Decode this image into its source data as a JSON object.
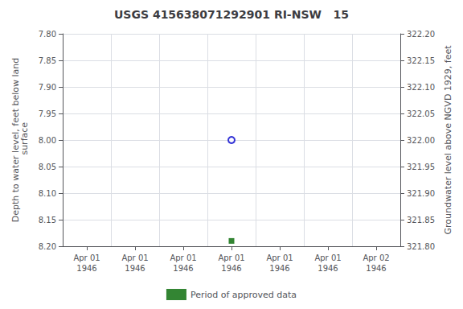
{
  "chart_data": {
    "type": "scatter",
    "title": "USGS 415638071292901 RI-NSW   15",
    "y_label": "Depth to water level, feet below land\n surface",
    "y2_label": "Groundwater level above NGVD 1929, feet",
    "categories": [
      "Apr 01\n1946",
      "Apr 01\n1946",
      "Apr 01\n1946",
      "Apr 01\n1946",
      "Apr 01\n1946",
      "Apr 01\n1946",
      "Apr 02\n1946"
    ],
    "series": [
      {
        "color": "#0000cc",
        "marker": "circle",
        "values": [
          null,
          null,
          null,
          8.0,
          null,
          null,
          null
        ]
      },
      {
        "name": "Period of approved data",
        "color": "#006600",
        "marker": "square",
        "values": [
          null,
          null,
          null,
          8.19,
          null,
          null,
          null
        ]
      }
    ],
    "ylim": [
      8.2,
      7.8
    ],
    "yticks": [
      {
        "value": 7.8,
        "label": "7.80"
      },
      {
        "value": 7.85,
        "label": "7.85"
      },
      {
        "value": 7.9,
        "label": "7.90"
      },
      {
        "value": 7.95,
        "label": "7.95"
      },
      {
        "value": 8.0,
        "label": "8.00"
      },
      {
        "value": 8.05,
        "label": "8.05"
      },
      {
        "value": 8.1,
        "label": "8.10"
      },
      {
        "value": 8.15,
        "label": "8.15"
      },
      {
        "value": 8.2,
        "label": "8.20"
      }
    ],
    "y2lim": [
      321.8,
      322.2
    ],
    "y2ticks": [
      {
        "value": 321.8,
        "label": "321.80"
      },
      {
        "value": 321.85,
        "label": "321.85"
      },
      {
        "value": 321.9,
        "label": "321.90"
      },
      {
        "value": 321.95,
        "label": "321.95"
      },
      {
        "value": 322.0,
        "label": "322.00"
      },
      {
        "value": 322.05,
        "label": "322.05"
      },
      {
        "value": 322.1,
        "label": "322.10"
      },
      {
        "value": 322.15,
        "label": "322.15"
      },
      {
        "value": 322.2,
        "label": "322.20"
      }
    ],
    "grid": true,
    "legend": "bottom"
  }
}
